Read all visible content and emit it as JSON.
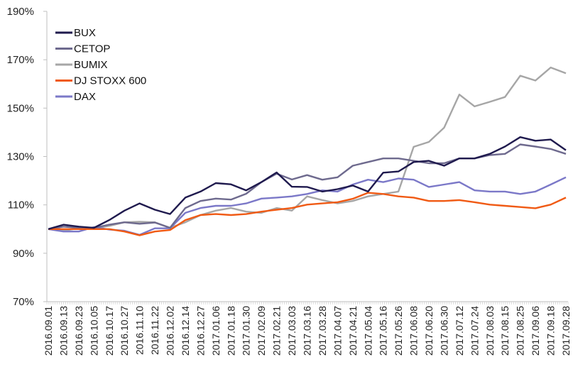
{
  "chart_data": {
    "type": "line",
    "title": "",
    "xlabel": "",
    "ylabel": "",
    "ylim": [
      70,
      190
    ],
    "yticks": [
      "70%",
      "90%",
      "110%",
      "130%",
      "150%",
      "170%",
      "190%"
    ],
    "ytick_values": [
      70,
      90,
      110,
      130,
      150,
      170,
      190
    ],
    "grid": false,
    "legend_position": "top-left",
    "x": [
      "2016.09.01",
      "2016.09.13",
      "2016.09.23",
      "2016.10.05",
      "2016.10.17",
      "2016.10.27",
      "2016.11.10",
      "2016.11.22",
      "2016.12.02",
      "2016.12.14",
      "2016.12.27",
      "2017.01.06",
      "2017.01.18",
      "2017.01.30",
      "2017.02.09",
      "2017.02.21",
      "2017.03.03",
      "2017.03.16",
      "2017.03.28",
      "2017.04.07",
      "2017.04.21",
      "2017.05.04",
      "2017.05.16",
      "2017.05.26",
      "2017.06.08",
      "2017.06.20",
      "2017.06.30",
      "2017.07.12",
      "2017.07.24",
      "2017.08.03",
      "2017.08.15",
      "2017.08.25",
      "2017.09.06",
      "2017.09.18",
      "2017.09.28"
    ],
    "series": [
      {
        "name": "BUX",
        "color": "#1f1a4e",
        "values": [
          100,
          101.8,
          101,
          100.5,
          103.7,
          107.6,
          110.6,
          108,
          106.2,
          113,
          115.5,
          119,
          118.5,
          116,
          119.4,
          123.4,
          117.5,
          117.4,
          115.5,
          116.5,
          118,
          115.5,
          123.3,
          123.8,
          127.7,
          128.2,
          126.2,
          129.2,
          129.2,
          131.1,
          134.1,
          138,
          136.5,
          137,
          132.6
        ]
      },
      {
        "name": "CETOP",
        "color": "#6e6a8e",
        "values": [
          100,
          101,
          100.5,
          100.5,
          101.8,
          102.8,
          102.2,
          102.7,
          100.5,
          108.7,
          111.6,
          112.6,
          112.2,
          114.6,
          119.4,
          122.9,
          120.5,
          122.3,
          120.4,
          121.4,
          126.2,
          127.7,
          129.2,
          129.2,
          128.2,
          127.2,
          127.2,
          129.2,
          129.2,
          130.6,
          131.1,
          135,
          134.1,
          133.1,
          131.1
        ]
      },
      {
        "name": "BUMIX",
        "color": "#a6a6a6",
        "values": [
          100,
          99.3,
          100.3,
          100.3,
          101.3,
          102.8,
          103,
          102.8,
          100.5,
          102.8,
          105.8,
          107.6,
          108.7,
          107.2,
          106.7,
          108.7,
          107.6,
          113.5,
          112,
          110.6,
          111.6,
          113.5,
          114.5,
          115.5,
          134,
          136,
          141.9,
          155.6,
          150.7,
          152.6,
          154.6,
          163.4,
          161.4,
          166.8,
          164.4
        ]
      },
      {
        "name": "DJ STOXX 600",
        "color": "#f05a14",
        "values": [
          100,
          100,
          100,
          100,
          100,
          99,
          97.4,
          99,
          99.6,
          103.7,
          105.8,
          106.2,
          105.8,
          106.2,
          107.2,
          108,
          108.7,
          110.1,
          110.6,
          111.1,
          112.5,
          115,
          114.5,
          113.5,
          113,
          111.6,
          111.6,
          112,
          111.1,
          110.1,
          109.6,
          109.1,
          108.6,
          110.1,
          113
        ]
      },
      {
        "name": "DAX",
        "color": "#7b78c8",
        "values": [
          100,
          99,
          99,
          100.8,
          99.8,
          99.3,
          97.6,
          100.3,
          100.3,
          106.7,
          108.7,
          109.6,
          109.6,
          110.6,
          112.6,
          113,
          113.5,
          114.5,
          116,
          115.5,
          118.4,
          120.4,
          119.4,
          120.9,
          120.4,
          117.4,
          118.4,
          119.4,
          116,
          115.5,
          115.5,
          114.5,
          115.5,
          118.4,
          121.4
        ]
      }
    ]
  }
}
